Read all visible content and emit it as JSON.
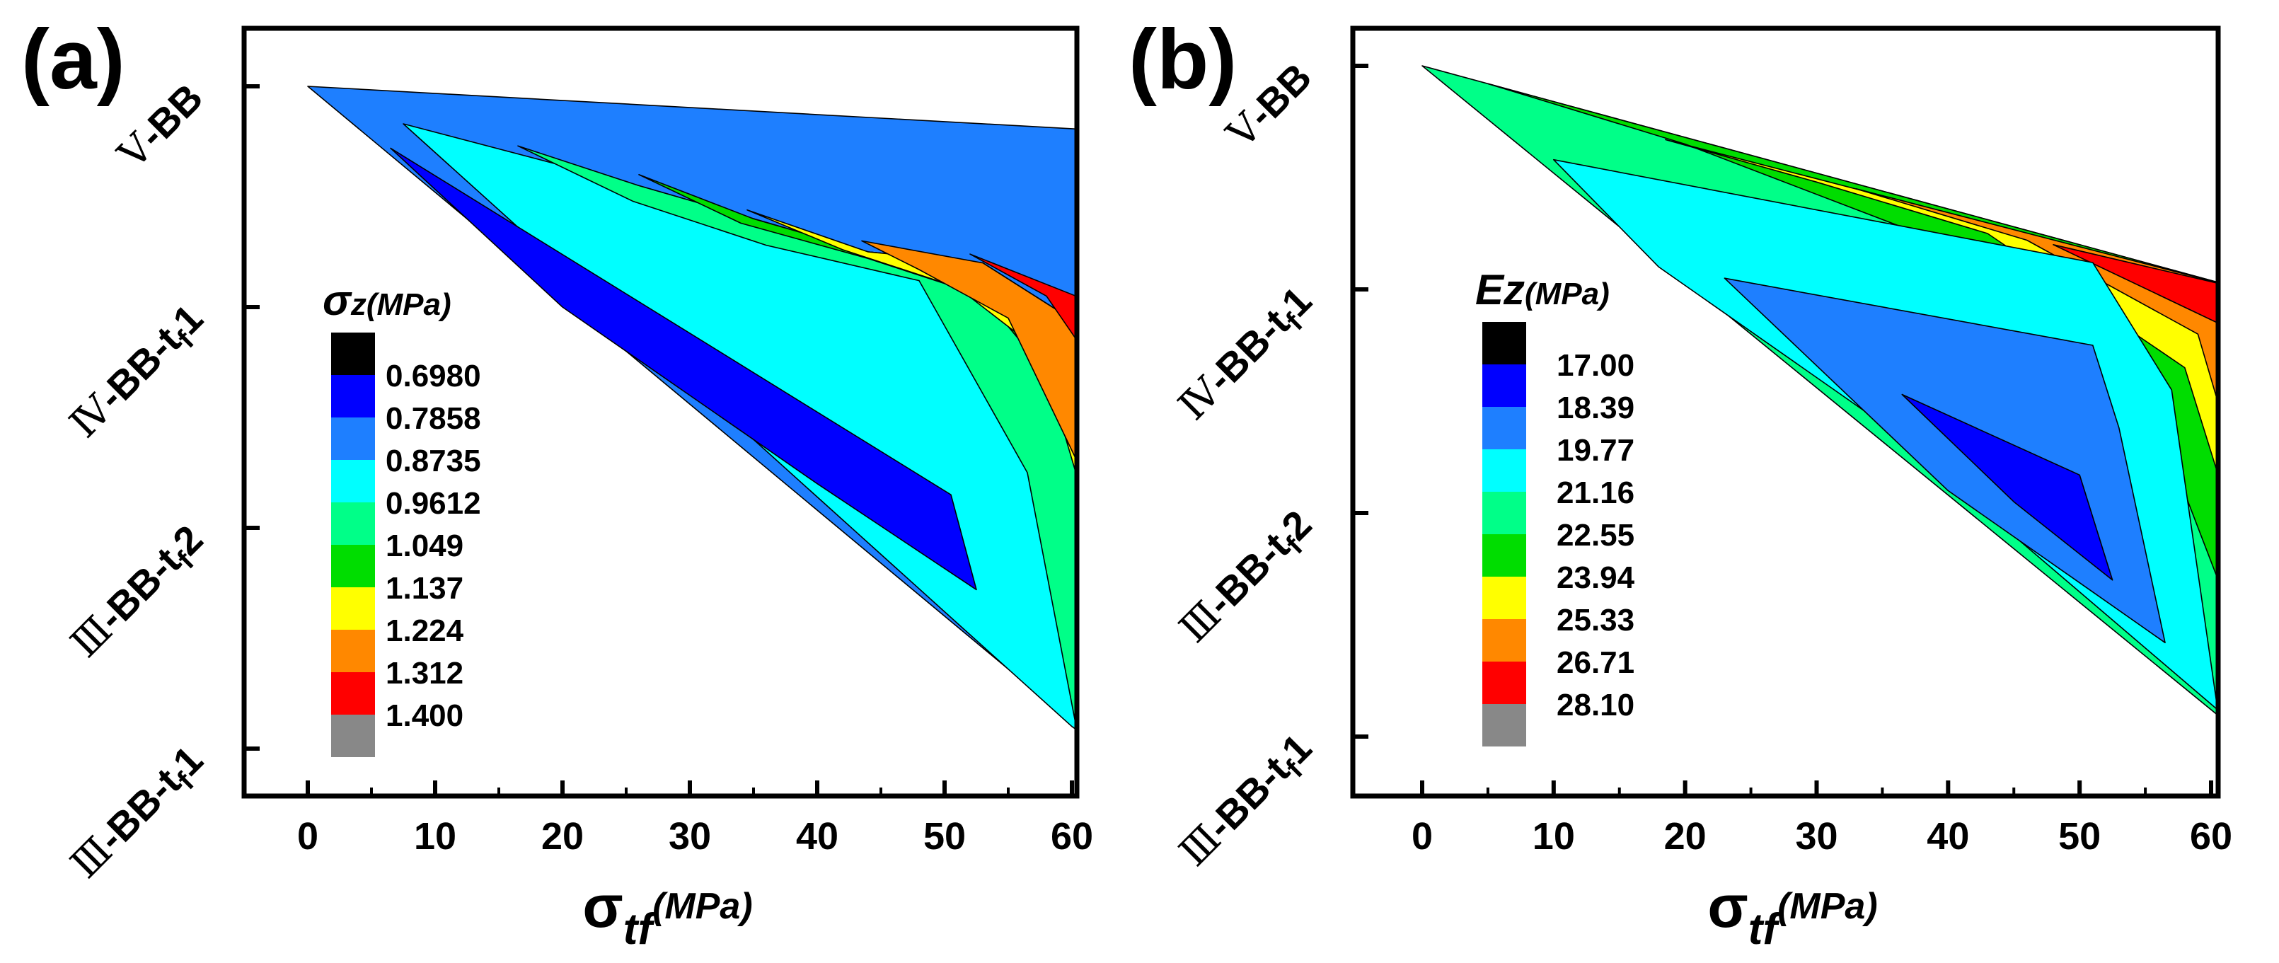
{
  "panels": [
    {
      "label": "(a)",
      "xlabel": {
        "symbol": "σ",
        "sub": "tf",
        "unit": "(MPa)"
      },
      "legend_title": {
        "symbol": "σ",
        "sub": "z",
        "unit": "(MPa)"
      }
    },
    {
      "label": "(b)",
      "xlabel": {
        "symbol": "σ",
        "sub": "tf",
        "unit": "(MPa)"
      },
      "legend_title": {
        "symbol": "Ez",
        "sub": "",
        "unit": "(MPa)"
      }
    }
  ],
  "chart_data": [
    {
      "type": "heatmap",
      "subtype": "filled-contour",
      "title": "",
      "xlabel": "σtf(MPa)",
      "ylabel": "",
      "xlim": [
        -5,
        65
      ],
      "x_ticks": [
        0,
        10,
        20,
        30,
        40,
        50,
        60
      ],
      "y_categories": [
        {
          "num": "Ⅴ",
          "text": "-BB",
          "sub": ""
        },
        {
          "num": "Ⅳ",
          "text": "-BB-t",
          "sub": "f",
          "tail": "1"
        },
        {
          "num": "Ⅲ",
          "text": "-BB-t",
          "sub": "f",
          "tail": "2"
        },
        {
          "num": "Ⅲ",
          "text": "-BB-t",
          "sub": "f",
          "tail": "1"
        }
      ],
      "legend": {
        "title": "σz(MPa)",
        "levels": [
          "0.6980",
          "0.7858",
          "0.8735",
          "0.9612",
          "1.049",
          "1.137",
          "1.224",
          "1.312",
          "1.400"
        ],
        "colors": [
          "#000000",
          "#0000ff",
          "#1e7fff",
          "#00ffff",
          "#00ff88",
          "#00dd00",
          "#ffff00",
          "#ff8800",
          "#ff0000",
          "#888888"
        ]
      },
      "bands": [
        {
          "color": "#1e7fff",
          "points": [
            [
              0,
              0
            ],
            [
              62.5,
              0.2
            ],
            [
              62.5,
              3
            ]
          ]
        },
        {
          "color": "#00ffff",
          "points": [
            [
              7.5,
              0.17
            ],
            [
              26,
              0.45
            ],
            [
              35,
              0.6
            ],
            [
              44,
              0.75
            ],
            [
              53,
              0.8
            ],
            [
              59,
              1.02
            ],
            [
              62.5,
              1.3
            ],
            [
              62.5,
              3
            ],
            [
              60,
              2.9
            ]
          ]
        },
        {
          "color": "#00ff88",
          "points": [
            [
              16.5,
              0.27
            ],
            [
              26,
              0.45
            ],
            [
              35,
              0.6
            ],
            [
              44,
              0.75
            ],
            [
              53,
              0.8
            ],
            [
              59,
              1.02
            ],
            [
              62.5,
              1.3
            ],
            [
              62.5,
              3
            ],
            [
              60.5,
              2.95
            ],
            [
              56.5,
              1.75
            ],
            [
              48,
              0.88
            ],
            [
              36,
              0.72
            ],
            [
              25.5,
              0.52
            ]
          ]
        },
        {
          "color": "#00dd00",
          "points": [
            [
              26,
              0.4
            ],
            [
              35,
              0.6
            ],
            [
              44,
              0.75
            ],
            [
              53,
              0.8
            ],
            [
              59,
              1.02
            ],
            [
              62.5,
              1.3
            ],
            [
              62.5,
              2.63
            ],
            [
              59.5,
              1.4
            ],
            [
              53,
              0.95
            ],
            [
              44,
              0.78
            ],
            [
              34,
              0.62
            ]
          ]
        },
        {
          "color": "#ffff00",
          "points": [
            [
              34.5,
              0.56
            ],
            [
              44,
              0.75
            ],
            [
              53,
              0.8
            ],
            [
              59,
              1.02
            ],
            [
              62.5,
              1.3
            ],
            [
              62.5,
              2.18
            ],
            [
              57.5,
              1.2
            ],
            [
              51,
              0.91
            ],
            [
              42,
              0.74
            ]
          ]
        },
        {
          "color": "#ff8800",
          "points": [
            [
              43.5,
              0.7
            ],
            [
              53,
              0.8
            ],
            [
              59,
              1.02
            ],
            [
              62.5,
              1.3
            ],
            [
              62.5,
              1.95
            ],
            [
              55,
              1.05
            ],
            [
              48,
              0.83
            ]
          ]
        },
        {
          "color": "#ff0000",
          "points": [
            [
              52,
              0.76
            ],
            [
              62.5,
              1.0
            ],
            [
              62.5,
              1.3
            ],
            [
              60.5,
              1.16
            ],
            [
              58,
              0.95
            ]
          ]
        },
        {
          "color": "#0000ff",
          "points": [
            [
              6.5,
              0.28
            ],
            [
              50.5,
              1.85
            ],
            [
              52.5,
              2.28
            ],
            [
              40,
              1.8
            ],
            [
              20,
              1.0
            ]
          ]
        }
      ]
    },
    {
      "type": "heatmap",
      "subtype": "filled-contour",
      "title": "",
      "xlabel": "σtf(MPa)",
      "ylabel": "",
      "xlim": [
        -5,
        65
      ],
      "x_ticks": [
        0,
        10,
        20,
        30,
        40,
        50,
        60
      ],
      "y_categories": [
        {
          "num": "Ⅴ",
          "text": "-BB",
          "sub": ""
        },
        {
          "num": "Ⅳ",
          "text": "-BB-t",
          "sub": "f",
          "tail": "1"
        },
        {
          "num": "Ⅲ",
          "text": "-BB-t",
          "sub": "f",
          "tail": "2"
        },
        {
          "num": "Ⅲ",
          "text": "-BB-t",
          "sub": "f",
          "tail": "1"
        }
      ],
      "legend": {
        "title": "Ez(MPa)",
        "levels": [
          "17.00",
          "18.39",
          "19.77",
          "21.16",
          "22.55",
          "23.94",
          "25.33",
          "26.71",
          "28.10"
        ],
        "colors": [
          "#000000",
          "#0000ff",
          "#1e7fff",
          "#00ffff",
          "#00ff88",
          "#00dd00",
          "#ffff00",
          "#ff8800",
          "#ff0000",
          "#888888"
        ]
      },
      "bands": [
        {
          "color": "#00ff88",
          "points": [
            [
              0,
              0
            ],
            [
              62.5,
              1.0
            ],
            [
              62.5,
              3
            ]
          ]
        },
        {
          "color": "#00dd00",
          "points": [
            [
              5,
              0.08
            ],
            [
              62.5,
              1.0
            ],
            [
              62.5,
              2.6
            ],
            [
              54,
              1.3
            ],
            [
              40,
              0.8
            ],
            [
              20,
              0.35
            ]
          ]
        },
        {
          "color": "#ffff00",
          "points": [
            [
              18.5,
              0.33
            ],
            [
              62.5,
              1.0
            ],
            [
              62.5,
              2.2
            ],
            [
              58,
              1.35
            ],
            [
              43,
              0.75
            ],
            [
              30,
              0.52
            ]
          ]
        },
        {
          "color": "#ff8800",
          "points": [
            [
              33,
              0.55
            ],
            [
              62.5,
              1.0
            ],
            [
              62.5,
              1.9
            ],
            [
              59,
              1.2
            ],
            [
              46,
              0.78
            ]
          ]
        },
        {
          "color": "#ff0000",
          "points": [
            [
              48,
              0.8
            ],
            [
              62.5,
              1.0
            ],
            [
              62.5,
              1.45
            ],
            [
              60.5,
              1.15
            ]
          ]
        },
        {
          "color": "#00ffff",
          "points": [
            [
              10,
              0.42
            ],
            [
              51,
              0.88
            ],
            [
              57,
              1.45
            ],
            [
              60.5,
              2.88
            ],
            [
              35,
              1.6
            ],
            [
              18,
              0.9
            ]
          ]
        },
        {
          "color": "#1e7fff",
          "points": [
            [
              23,
              0.95
            ],
            [
              51,
              1.25
            ],
            [
              53,
              1.62
            ],
            [
              56.5,
              2.58
            ],
            [
              40,
              1.9
            ]
          ]
        },
        {
          "color": "#0000ff",
          "points": [
            [
              36.5,
              1.47
            ],
            [
              50,
              1.83
            ],
            [
              52.5,
              2.3
            ],
            [
              45,
              1.95
            ]
          ]
        }
      ]
    }
  ]
}
